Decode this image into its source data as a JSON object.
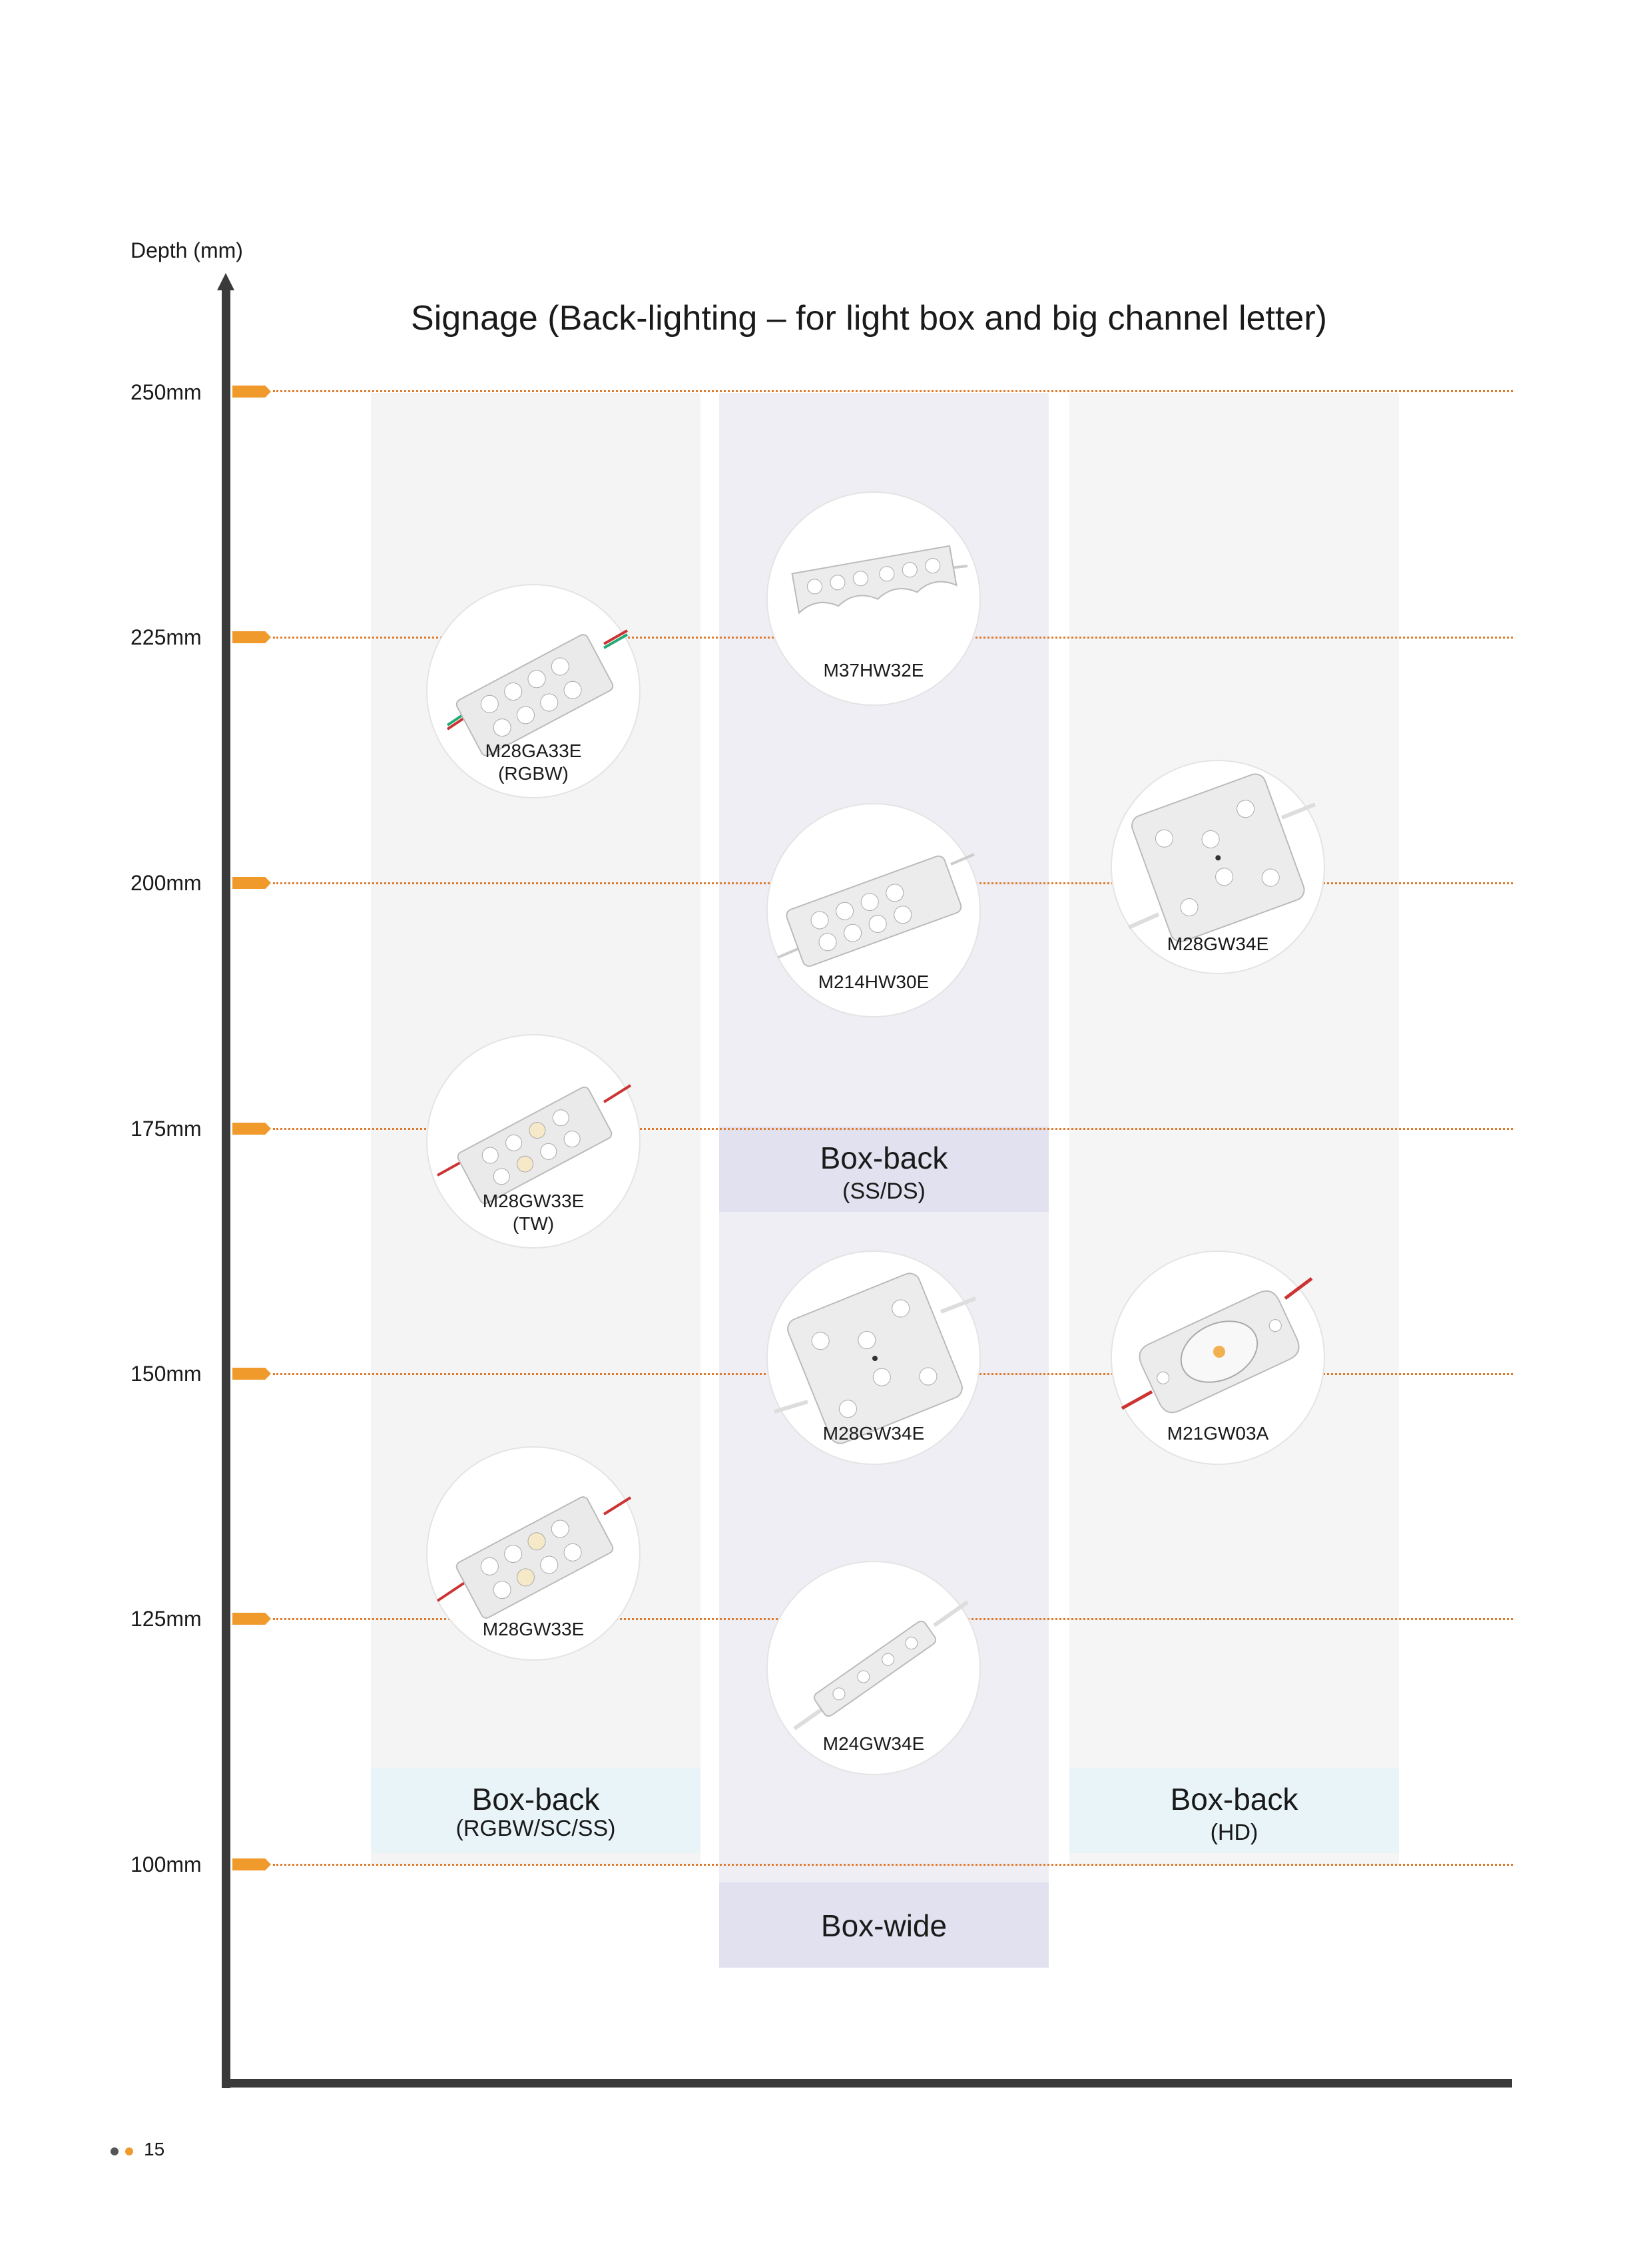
{
  "axis": {
    "title": "Depth (mm)",
    "ticks": [
      "250mm",
      "225mm",
      "200mm",
      "175mm",
      "150mm",
      "125mm",
      "100mm"
    ]
  },
  "chart_title": "Signage (Back-lighting – for light box and big channel letter)",
  "groups": {
    "box_back_rgbw": {
      "title": "Box-back",
      "sub": "(RGBW/SC/SS)"
    },
    "box_back_ssds": {
      "title": "Box-back",
      "sub": "(SS/DS)"
    },
    "box_back_hd": {
      "title": "Box-back",
      "sub": "(HD)"
    },
    "box_wide": {
      "title": "Box-wide"
    }
  },
  "products": {
    "m28ga33e": {
      "name": "M28GA33E",
      "sub": "(RGBW)"
    },
    "m28gw33e_tw": {
      "name": "M28GW33E",
      "sub": "(TW)"
    },
    "m28gw33e": {
      "name": "M28GW33E"
    },
    "m37hw32e": {
      "name": "M37HW32E"
    },
    "m214hw30e": {
      "name": "M214HW30E"
    },
    "m28gw34e_mid": {
      "name": "M28GW34E"
    },
    "m24gw34e": {
      "name": "M24GW34E"
    },
    "m28gw34e_right": {
      "name": "M28GW34E"
    },
    "m21gw03a": {
      "name": "M21GW03A"
    }
  },
  "footer": {
    "page_number": "15"
  },
  "colors": {
    "accent": "#f09a2c",
    "gridline": "#e07a2a",
    "axis": "#3a3a3a",
    "column_left": "#f4f4f4",
    "column_mid": "#eeeef4",
    "column_right": "#f5f5f5",
    "box_light_blue": "#e8f4f8",
    "box_lavender": "#e1e1ef"
  }
}
